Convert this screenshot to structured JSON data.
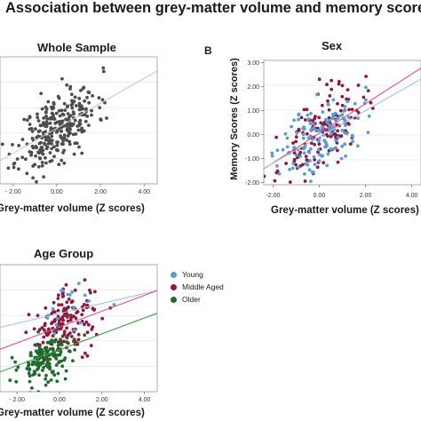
{
  "title": "Association between grey-matter volume and memory score",
  "colors": {
    "grey": "#4d4d4d",
    "young": "#5b9bd5",
    "middle": "#8b1a3c",
    "older": "#1f6b2e",
    "fit_grey": "#c8c8c8",
    "fit_young": "#9cc3e6",
    "fit_middle": "#e0508a",
    "fit_older": "#3f9a45"
  },
  "legend": {
    "young": "Young",
    "middle": "Middle Aged",
    "older": "Older"
  },
  "chart_data": [
    {
      "type": "scatter",
      "title": "Whole Sample",
      "letter": "",
      "xlabel": "Grey-matter volume (Z scores)",
      "ylabel": "",
      "xlim": [
        -2.6,
        4.6
      ],
      "ylim": [
        -2.4,
        3.2
      ],
      "x_ticks": [
        -2.0,
        0.0,
        2.0,
        4.0
      ],
      "x_tick_labels": [
        "- 2.00",
        "0.00",
        "2.00",
        "4.00"
      ],
      "y_ticks": [],
      "y_tick_labels": [],
      "grid": "horizontal",
      "series": [
        {
          "seed": 11,
          "n": 300,
          "mx": 0.05,
          "sx": 0.9,
          "slope": 0.55,
          "b": 0.05,
          "sd": 0.75,
          "color": "grey"
        }
      ],
      "fit_lines": [
        {
          "slope": 0.55,
          "intercept": 0.05,
          "color": "fit_grey"
        }
      ]
    },
    {
      "type": "scatter",
      "title": "Sex",
      "letter": "B",
      "xlabel": "Grey-matter volume (Z scores)",
      "ylabel": "Memory Scores (Z scores)",
      "xlim": [
        -2.4,
        4.4
      ],
      "ylim": [
        -2.1,
        3.1
      ],
      "x_ticks": [
        -2.0,
        0.0,
        2.0,
        4.0
      ],
      "x_tick_labels": [
        "-2.00",
        "0.00",
        "2.00",
        "4.00"
      ],
      "y_ticks": [
        3.0,
        2.0,
        1.0,
        0.0,
        -1.0,
        -2.0
      ],
      "y_tick_labels": [
        "3.00",
        "2.00",
        "1.00",
        "0.00",
        "-1.00",
        "-2.00"
      ],
      "grid": "horizontal",
      "series": [
        {
          "seed": 23,
          "n": 150,
          "mx": 0.05,
          "sx": 0.9,
          "slope": 0.65,
          "b": 0.0,
          "sd": 0.75,
          "color": "middle"
        },
        {
          "seed": 37,
          "n": 130,
          "mx": 0.1,
          "sx": 0.9,
          "slope": 0.55,
          "b": -0.1,
          "sd": 0.75,
          "color": "young"
        }
      ],
      "fit_lines": [
        {
          "slope": 0.62,
          "intercept": 0.05,
          "color": "fit_middle"
        },
        {
          "slope": 0.55,
          "intercept": -0.1,
          "color": "fit_young"
        }
      ]
    },
    {
      "type": "scatter",
      "title": "Age Group",
      "letter": "",
      "xlabel": "Grey-matter volume (Z scores)",
      "ylabel": "",
      "xlim": [
        -2.8,
        4.6
      ],
      "ylim": [
        -2.4,
        3.2
      ],
      "x_ticks": [
        -2.0,
        0.0,
        2.0,
        4.0
      ],
      "x_tick_labels": [
        "- 2.00",
        "0.00",
        "2.00",
        "4.00"
      ],
      "y_ticks": [],
      "y_tick_labels": [],
      "grid": "horizontal",
      "series": [
        {
          "seed": 41,
          "n": 160,
          "mx": 0.3,
          "sx": 0.8,
          "slope": 0.35,
          "b": 0.5,
          "sd": 0.7,
          "color": "middle"
        },
        {
          "seed": 53,
          "n": 150,
          "mx": -0.6,
          "sx": 0.65,
          "slope": 0.35,
          "b": -0.8,
          "sd": 0.55,
          "color": "older"
        },
        {
          "seed": 67,
          "n": 18,
          "mx": 0.6,
          "sx": 0.9,
          "slope": 0.2,
          "b": 1.0,
          "sd": 0.6,
          "color": "young"
        }
      ],
      "fit_lines": [
        {
          "slope": 0.22,
          "intercept": 1.05,
          "color": "fit_young"
        },
        {
          "slope": 0.35,
          "intercept": 0.45,
          "color": "fit_middle"
        },
        {
          "slope": 0.35,
          "intercept": -0.55,
          "color": "fit_older"
        }
      ]
    }
  ]
}
